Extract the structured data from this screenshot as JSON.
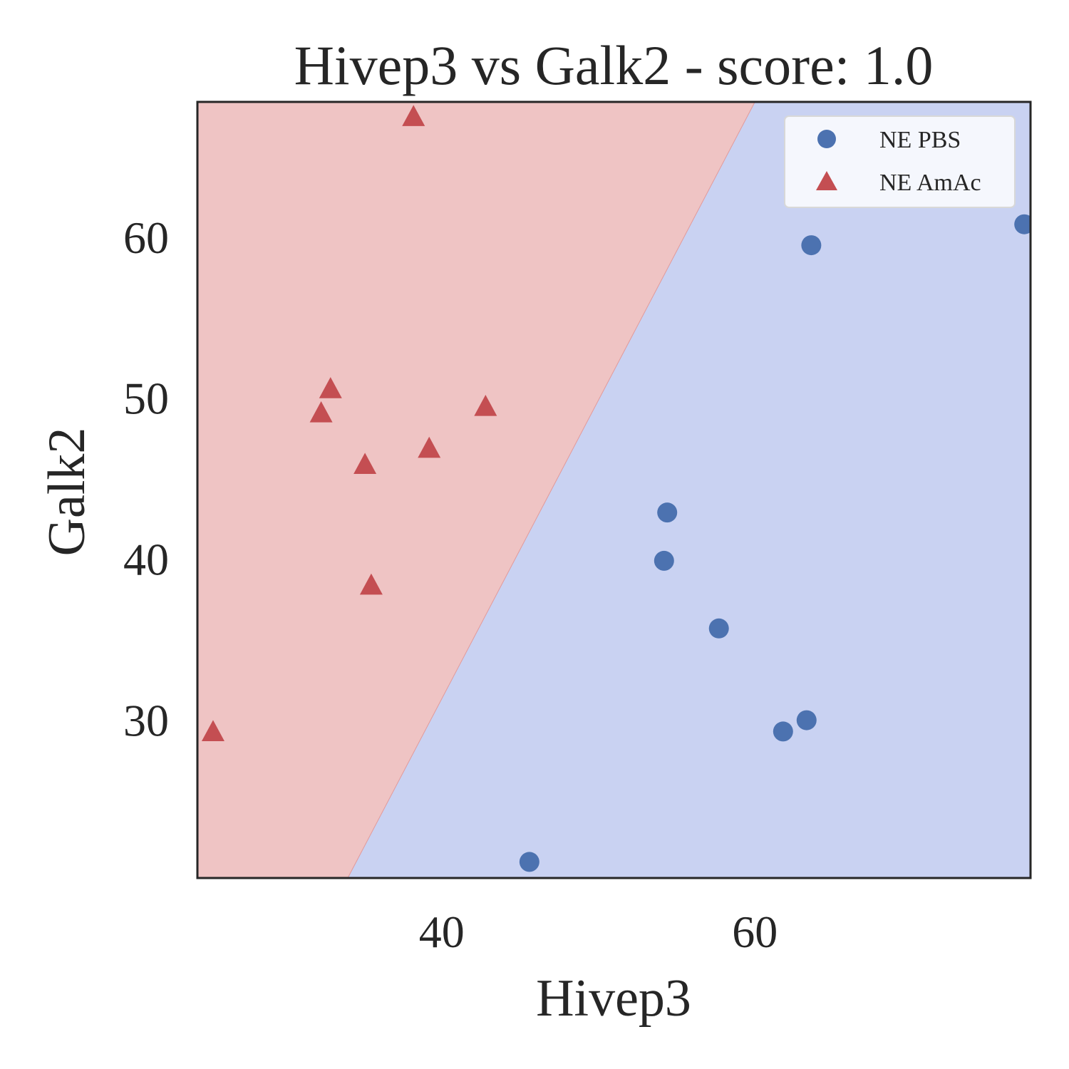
{
  "chart_data": {
    "type": "scatter",
    "title": "Hivep3 vs Galk2 - score: 1.0",
    "xlabel": "Hivep3",
    "ylabel": "Galk2",
    "xlim": [
      24.4,
      77.6
    ],
    "ylim": [
      20.2,
      68.4
    ],
    "xticks": [
      40,
      60
    ],
    "yticks": [
      30,
      40,
      50,
      60
    ],
    "grid": false,
    "legend_position": "top-right",
    "decision_boundary": {
      "line": [
        [
          34.0,
          20.2
        ],
        [
          60.0,
          68.4
        ]
      ],
      "left_region_color": "#efc4c4",
      "right_region_color": "#c9d2f2"
    },
    "series": [
      {
        "name": "NE PBS",
        "marker": "circle",
        "color": "#4c72b0",
        "points": [
          [
            77.2,
            60.8
          ],
          [
            63.6,
            59.5
          ],
          [
            54.4,
            42.9
          ],
          [
            54.2,
            39.9
          ],
          [
            57.7,
            35.7
          ],
          [
            61.8,
            29.3
          ],
          [
            63.3,
            30.0
          ],
          [
            45.6,
            21.2
          ]
        ]
      },
      {
        "name": "NE AmAc",
        "marker": "triangle",
        "color": "#c44e52",
        "points": [
          [
            38.2,
            67.5
          ],
          [
            32.9,
            50.6
          ],
          [
            32.3,
            49.1
          ],
          [
            42.8,
            49.5
          ],
          [
            39.2,
            46.9
          ],
          [
            35.1,
            45.9
          ],
          [
            35.5,
            38.4
          ],
          [
            25.4,
            29.3
          ]
        ]
      }
    ]
  }
}
